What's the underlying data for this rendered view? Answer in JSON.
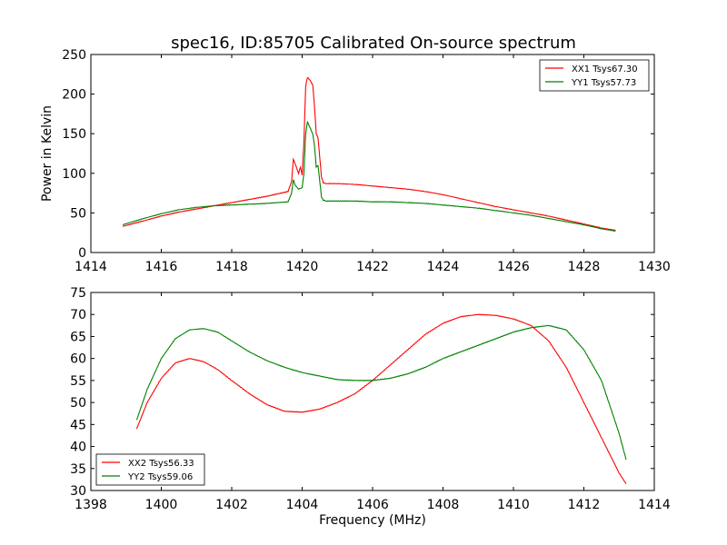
{
  "figure": {
    "title": "spec16, ID:85705 Calibrated On-source spectrum"
  },
  "chart_data": [
    {
      "type": "line",
      "title": "spec16, ID:85705 Calibrated On-source spectrum",
      "xlabel": "",
      "ylabel": "Power in Kelvin",
      "xlim": [
        1414,
        1430
      ],
      "ylim": [
        0,
        250
      ],
      "xticks": [
        1414,
        1416,
        1418,
        1420,
        1422,
        1424,
        1426,
        1428,
        1430
      ],
      "yticks": [
        0,
        50,
        100,
        150,
        200,
        250
      ],
      "grid": false,
      "legend": "top-right",
      "series": [
        {
          "name": "XX1 Tsys67.30",
          "color": "#ff0000",
          "x": [
            1414.9,
            1415.5,
            1416.0,
            1416.5,
            1417.0,
            1417.5,
            1418.0,
            1418.5,
            1419.0,
            1419.3,
            1419.6,
            1419.7,
            1419.75,
            1419.8,
            1419.9,
            1419.95,
            1420.0,
            1420.05,
            1420.1,
            1420.15,
            1420.2,
            1420.3,
            1420.35,
            1420.4,
            1420.45,
            1420.5,
            1420.55,
            1420.6,
            1420.7,
            1421.0,
            1421.5,
            1422.0,
            1422.5,
            1423.0,
            1423.5,
            1424.0,
            1424.5,
            1425.0,
            1425.5,
            1426.0,
            1426.5,
            1427.0,
            1427.5,
            1428.0,
            1428.5,
            1428.9
          ],
          "y": [
            33,
            40,
            46,
            51,
            55,
            59,
            63,
            67,
            71,
            74,
            77,
            90,
            118,
            112,
            100,
            108,
            98,
            140,
            210,
            221,
            219,
            212,
            185,
            150,
            145,
            120,
            95,
            88,
            87,
            87,
            86,
            84,
            82,
            80,
            77,
            73,
            68,
            63,
            58,
            54,
            50,
            46,
            41,
            36,
            31,
            28
          ]
        },
        {
          "name": "YY1 Tsys57.73",
          "color": "#008000",
          "x": [
            1414.9,
            1415.5,
            1416.0,
            1416.5,
            1417.0,
            1417.5,
            1418.0,
            1418.5,
            1419.0,
            1419.3,
            1419.6,
            1419.7,
            1419.75,
            1419.8,
            1419.9,
            1420.0,
            1420.05,
            1420.1,
            1420.15,
            1420.2,
            1420.3,
            1420.35,
            1420.4,
            1420.45,
            1420.5,
            1420.55,
            1420.6,
            1420.7,
            1421.0,
            1421.5,
            1422.0,
            1422.5,
            1423.0,
            1423.5,
            1424.0,
            1424.5,
            1425.0,
            1425.5,
            1426.0,
            1426.5,
            1427.0,
            1427.5,
            1428.0,
            1428.5,
            1428.9
          ],
          "y": [
            35,
            43,
            49,
            54,
            57,
            59,
            60,
            61,
            62,
            63,
            64,
            75,
            92,
            85,
            80,
            82,
            100,
            150,
            165,
            160,
            150,
            135,
            108,
            110,
            90,
            70,
            66,
            65,
            65,
            65,
            64,
            64,
            63,
            62,
            60,
            58,
            56,
            53,
            50,
            47,
            43,
            39,
            35,
            30,
            27
          ]
        }
      ]
    },
    {
      "type": "line",
      "title": "",
      "xlabel": "Frequency (MHz)",
      "ylabel": "",
      "xlim": [
        1398,
        1414
      ],
      "ylim": [
        30,
        75
      ],
      "xticks": [
        1398,
        1400,
        1402,
        1404,
        1406,
        1408,
        1410,
        1412,
        1414
      ],
      "yticks": [
        30,
        35,
        40,
        45,
        50,
        55,
        60,
        65,
        70,
        75
      ],
      "grid": false,
      "legend": "bottom-left",
      "series": [
        {
          "name": "XX2 Tsys56.33",
          "color": "#ff0000",
          "x": [
            1399.3,
            1399.6,
            1400.0,
            1400.4,
            1400.8,
            1401.2,
            1401.6,
            1402.0,
            1402.5,
            1403.0,
            1403.5,
            1404.0,
            1404.5,
            1405.0,
            1405.5,
            1406.0,
            1406.5,
            1407.0,
            1407.5,
            1408.0,
            1408.5,
            1409.0,
            1409.5,
            1410.0,
            1410.5,
            1411.0,
            1411.5,
            1412.0,
            1412.5,
            1413.0,
            1413.2
          ],
          "y": [
            44,
            50,
            55.5,
            59,
            60,
            59.3,
            57.5,
            55,
            52,
            49.5,
            48,
            47.8,
            48.5,
            50,
            52,
            55,
            58.5,
            62,
            65.5,
            68,
            69.5,
            70,
            69.8,
            69,
            67.5,
            64,
            58,
            50,
            42,
            34,
            31.5
          ]
        },
        {
          "name": "YY2 Tsys59.06",
          "color": "#008000",
          "x": [
            1399.3,
            1399.6,
            1400.0,
            1400.4,
            1400.8,
            1401.2,
            1401.6,
            1402.0,
            1402.5,
            1403.0,
            1403.5,
            1404.0,
            1404.5,
            1405.0,
            1405.5,
            1406.0,
            1406.5,
            1407.0,
            1407.5,
            1408.0,
            1408.5,
            1409.0,
            1409.5,
            1410.0,
            1410.5,
            1411.0,
            1411.5,
            1412.0,
            1412.5,
            1413.0,
            1413.2
          ],
          "y": [
            46,
            53,
            60,
            64.5,
            66.5,
            66.8,
            66,
            64,
            61.5,
            59.5,
            58,
            56.8,
            56,
            55.2,
            55,
            55,
            55.5,
            56.5,
            58,
            60,
            61.5,
            63,
            64.5,
            66,
            67,
            67.5,
            66.5,
            62,
            55,
            43,
            37
          ]
        }
      ]
    }
  ]
}
